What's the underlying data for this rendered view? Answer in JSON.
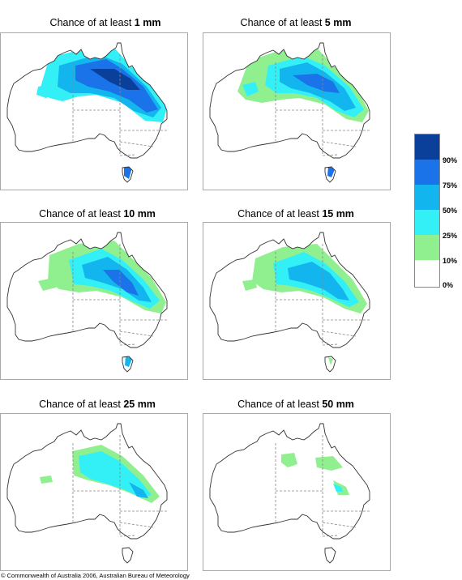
{
  "panels": [
    {
      "prefix": "Chance of at least ",
      "amount": "1 mm"
    },
    {
      "prefix": "Chance of at least ",
      "amount": "5 mm"
    },
    {
      "prefix": "Chance of at least ",
      "amount": "10 mm"
    },
    {
      "prefix": "Chance of at least ",
      "amount": "15 mm"
    },
    {
      "prefix": "Chance of at least ",
      "amount": "25 mm"
    },
    {
      "prefix": "Chance of at least ",
      "amount": "50 mm"
    }
  ],
  "legend": {
    "labels": [
      "90%",
      "75%",
      "50%",
      "25%",
      "10%",
      "0%"
    ],
    "colors": [
      "#0a3f9a",
      "#1a73e8",
      "#12b5ee",
      "#33f0f7",
      "#90f090",
      "#ffffff"
    ]
  },
  "map_colors": {
    "outline": "#333333",
    "border": "#888888",
    "c10": "#90f090",
    "c25": "#33f0f7",
    "c50": "#12b5ee",
    "c75": "#1a73e8",
    "c90": "#0a3f9a"
  },
  "copyright": "© Commonwealth of Australia 2006, Australian Bureau of Meteorology"
}
